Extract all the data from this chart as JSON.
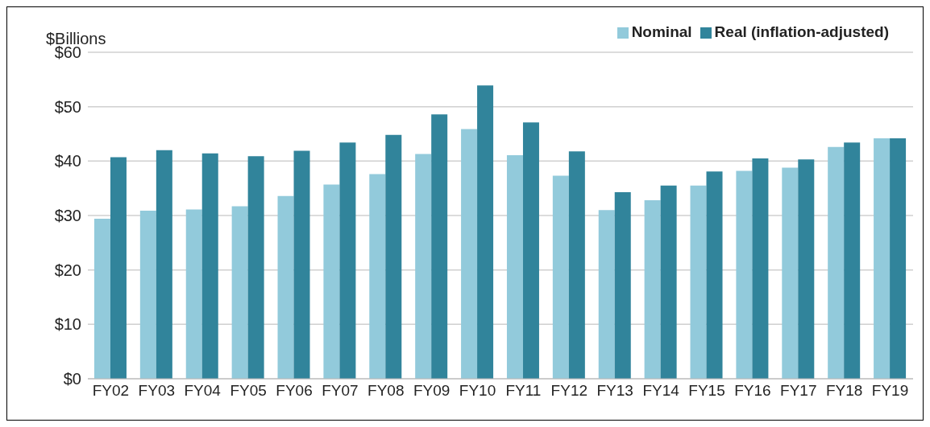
{
  "chart_data": {
    "type": "bar",
    "ylabel": "$Billions",
    "categories": [
      "FY02",
      "FY03",
      "FY04",
      "FY05",
      "FY06",
      "FY07",
      "FY08",
      "FY09",
      "FY10",
      "FY11",
      "FY12",
      "FY13",
      "FY14",
      "FY15",
      "FY16",
      "FY17",
      "FY18",
      "FY19"
    ],
    "series": [
      {
        "name": "Nominal",
        "color": "#92cadb",
        "values": [
          29.4,
          30.9,
          31.1,
          31.7,
          33.6,
          35.7,
          37.6,
          41.3,
          45.9,
          41.1,
          37.3,
          31.0,
          32.8,
          35.5,
          38.2,
          38.8,
          42.6,
          44.2
        ]
      },
      {
        "name": "Real (inflation-adjusted)",
        "color": "#31849b",
        "values": [
          40.7,
          42.0,
          41.4,
          40.9,
          41.9,
          43.4,
          44.8,
          48.6,
          53.9,
          47.1,
          41.8,
          34.3,
          35.5,
          38.1,
          40.5,
          40.3,
          43.4,
          44.2
        ]
      }
    ],
    "ylim": [
      0,
      60
    ],
    "yticks": [
      {
        "value": 0,
        "label": "$0"
      },
      {
        "value": 10,
        "label": "$10"
      },
      {
        "value": 20,
        "label": "$20"
      },
      {
        "value": 30,
        "label": "$30"
      },
      {
        "value": 40,
        "label": "$40"
      },
      {
        "value": 50,
        "label": "$50"
      },
      {
        "value": 60,
        "label": "$60"
      }
    ],
    "grid": "y",
    "legend": "top right"
  }
}
